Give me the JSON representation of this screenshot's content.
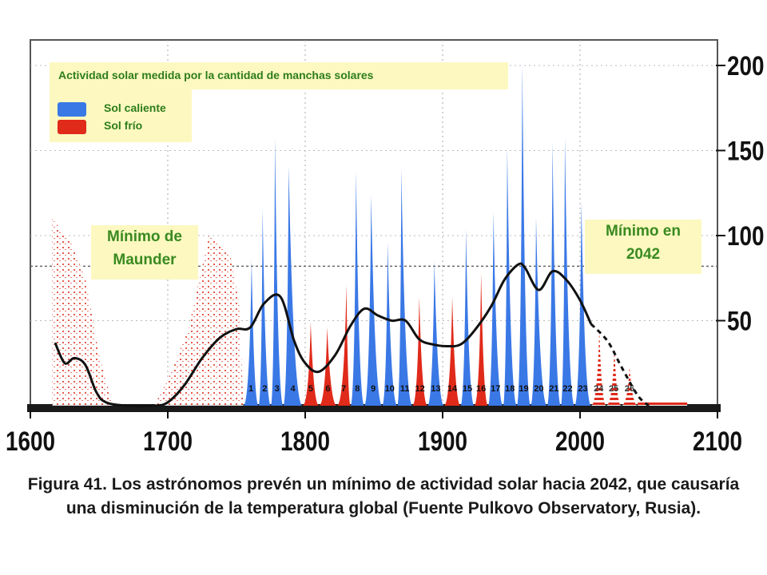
{
  "chart_data": {
    "type": "bar",
    "title": "Actividad solar medida por la cantidad de manchas solares",
    "xlabel": "",
    "ylabel": "",
    "xlim": [
      1600,
      2100
    ],
    "ylim": [
      0,
      215
    ],
    "x_ticks": [
      1600,
      1700,
      1800,
      1900,
      2000,
      2100
    ],
    "y_ticks": [
      50,
      100,
      150,
      200
    ],
    "grid": true,
    "legend": [
      {
        "name": "Sol caliente",
        "color": "#3a78e6"
      },
      {
        "name": "Sol frío",
        "color": "#e02a1a"
      }
    ],
    "cycles": [
      {
        "label": "1",
        "start": 1755,
        "peak_year": 1761,
        "peak": 86,
        "end": 1766,
        "kind": "hot"
      },
      {
        "label": "2",
        "start": 1766,
        "peak_year": 1769,
        "peak": 116,
        "end": 1775,
        "kind": "hot"
      },
      {
        "label": "3",
        "start": 1775,
        "peak_year": 1778,
        "peak": 158,
        "end": 1784,
        "kind": "hot"
      },
      {
        "label": "4",
        "start": 1784,
        "peak_year": 1788,
        "peak": 141,
        "end": 1798,
        "kind": "hot"
      },
      {
        "label": "5",
        "start": 1798,
        "peak_year": 1804,
        "peak": 49,
        "end": 1810,
        "kind": "cold"
      },
      {
        "label": "6",
        "start": 1810,
        "peak_year": 1816,
        "peak": 46,
        "end": 1823,
        "kind": "cold"
      },
      {
        "label": "7",
        "start": 1823,
        "peak_year": 1830,
        "peak": 71,
        "end": 1833,
        "kind": "cold"
      },
      {
        "label": "8",
        "start": 1833,
        "peak_year": 1837,
        "peak": 138,
        "end": 1843,
        "kind": "hot"
      },
      {
        "label": "9",
        "start": 1843,
        "peak_year": 1848,
        "peak": 124,
        "end": 1856,
        "kind": "hot"
      },
      {
        "label": "10",
        "start": 1856,
        "peak_year": 1860,
        "peak": 96,
        "end": 1867,
        "kind": "hot"
      },
      {
        "label": "11",
        "start": 1867,
        "peak_year": 1870,
        "peak": 139,
        "end": 1878,
        "kind": "hot"
      },
      {
        "label": "12",
        "start": 1878,
        "peak_year": 1883,
        "peak": 64,
        "end": 1889,
        "kind": "cold"
      },
      {
        "label": "13",
        "start": 1889,
        "peak_year": 1894,
        "peak": 85,
        "end": 1901,
        "kind": "hot"
      },
      {
        "label": "14",
        "start": 1901,
        "peak_year": 1907,
        "peak": 64,
        "end": 1913,
        "kind": "cold"
      },
      {
        "label": "15",
        "start": 1913,
        "peak_year": 1917,
        "peak": 104,
        "end": 1923,
        "kind": "hot"
      },
      {
        "label": "16",
        "start": 1923,
        "peak_year": 1928,
        "peak": 78,
        "end": 1933,
        "kind": "cold"
      },
      {
        "label": "17",
        "start": 1933,
        "peak_year": 1937,
        "peak": 114,
        "end": 1944,
        "kind": "hot"
      },
      {
        "label": "18",
        "start": 1944,
        "peak_year": 1947,
        "peak": 152,
        "end": 1954,
        "kind": "hot"
      },
      {
        "label": "19",
        "start": 1954,
        "peak_year": 1958,
        "peak": 201,
        "end": 1964,
        "kind": "hot"
      },
      {
        "label": "20",
        "start": 1964,
        "peak_year": 1968,
        "peak": 111,
        "end": 1976,
        "kind": "hot"
      },
      {
        "label": "21",
        "start": 1976,
        "peak_year": 1980,
        "peak": 155,
        "end": 1986,
        "kind": "hot"
      },
      {
        "label": "22",
        "start": 1986,
        "peak_year": 1989,
        "peak": 158,
        "end": 1996,
        "kind": "hot"
      },
      {
        "label": "23",
        "start": 1996,
        "peak_year": 2001,
        "peak": 120,
        "end": 2008,
        "kind": "hot"
      },
      {
        "label": "24",
        "start": 2008,
        "peak_year": 2014,
        "peak": 45,
        "end": 2019,
        "kind": "forecast"
      },
      {
        "label": "25",
        "start": 2019,
        "peak_year": 2025,
        "peak": 34,
        "end": 2030,
        "kind": "forecast"
      },
      {
        "label": "26",
        "start": 2030,
        "peak_year": 2036,
        "peak": 23,
        "end": 2042,
        "kind": "forecast"
      }
    ],
    "smoothed_series": {
      "name": "",
      "x": [
        1618,
        1625,
        1632,
        1640,
        1648,
        1655,
        1670,
        1690,
        1700,
        1712,
        1725,
        1738,
        1750,
        1760,
        1770,
        1782,
        1792,
        1800,
        1810,
        1822,
        1833,
        1843,
        1853,
        1863,
        1873,
        1883,
        1893,
        1903,
        1913,
        1923,
        1935,
        1945,
        1955,
        1960,
        1970,
        1980,
        1990,
        2000,
        2008
      ],
      "y": [
        37,
        25,
        28,
        24,
        8,
        2,
        0,
        0,
        2,
        12,
        28,
        40,
        45,
        46,
        60,
        64,
        38,
        25,
        20,
        30,
        47,
        57,
        53,
        50,
        50,
        39,
        36,
        35,
        36,
        44,
        58,
        74,
        83,
        81,
        68,
        79,
        74,
        62,
        48
      ]
    },
    "forecast_trend": {
      "name": "",
      "x": [
        2008,
        2020,
        2030,
        2042,
        2050
      ],
      "y": [
        48,
        38,
        23,
        6,
        0
      ]
    },
    "reference_line_y": 82
  },
  "annotations": {
    "maunder": [
      "Mínimo de",
      "Maunder"
    ],
    "min2042": [
      "Mínimo en",
      "2042"
    ]
  },
  "caption": "Figura 41.  Los astrónomos prevén un mínimo de actividad solar hacia 2042, que causaría una disminución de la temperatura global (Fuente Pulkovo Observatory, Rusia).",
  "colors": {
    "hot": "#3a78e6",
    "cold": "#e02a1a",
    "curve": "#111111",
    "callout_bg": "#fcf8c0",
    "callout_text": "#3a8a20"
  }
}
